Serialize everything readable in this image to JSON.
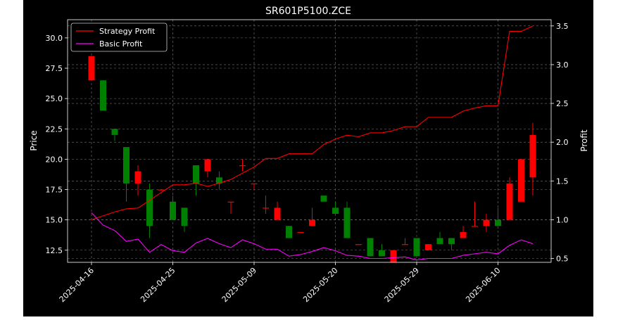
{
  "chart_data": {
    "type": "candlestick",
    "title": "SR601P5100.ZCE",
    "xlabel": "",
    "ylabel": "Price",
    "y2label": "Profit",
    "ylim": [
      11.5,
      31.5
    ],
    "y2lim": [
      0.45,
      3.58
    ],
    "yticks": [
      12.5,
      15.0,
      17.5,
      20.0,
      22.5,
      25.0,
      27.5,
      30.0
    ],
    "yticklabels": [
      "12.5",
      "15.0",
      "17.5",
      "20.0",
      "22.5",
      "25.0",
      "27.5",
      "30.0"
    ],
    "y2ticks": [
      0.5,
      1.0,
      1.5,
      2.0,
      2.5,
      3.0,
      3.5
    ],
    "y2ticklabels": [
      "0.5",
      "1.0",
      "1.5",
      "2.0",
      "2.5",
      "3.0",
      "3.5"
    ],
    "xticks": [
      {
        "index": 0,
        "label": "2025-04-16"
      },
      {
        "index": 7,
        "label": "2025-04-25"
      },
      {
        "index": 14,
        "label": "2025-05-09"
      },
      {
        "index": 21,
        "label": "2025-05-20"
      },
      {
        "index": 28,
        "label": "2025-05-29"
      },
      {
        "index": 35,
        "label": "2025-06-10"
      }
    ],
    "grid": true,
    "legend_position": "top-left",
    "colors": {
      "background": "#000000",
      "up": "#ff0000",
      "down": "#008000",
      "strategy": "#ff0000",
      "basic": "#ff00ff",
      "grid": "#777777",
      "text": "#ffffff"
    },
    "candles": [
      {
        "o": 26.5,
        "c": 28.5,
        "h": 28.5,
        "l": 26.5
      },
      {
        "o": 26.5,
        "c": 24.0,
        "h": 26.5,
        "l": 24.0
      },
      {
        "o": 22.5,
        "c": 22.0,
        "h": 22.5,
        "l": 21.5
      },
      {
        "o": 21.0,
        "c": 18.0,
        "h": 21.0,
        "l": 16.5
      },
      {
        "o": 18.0,
        "c": 19.0,
        "h": 19.5,
        "l": 17.0
      },
      {
        "o": 17.5,
        "c": 14.5,
        "h": 18.0,
        "l": 13.5
      },
      {
        "o": 17.5,
        "c": 17.5,
        "h": 17.5,
        "l": 17.5
      },
      {
        "o": 16.5,
        "c": 15.0,
        "h": 17.0,
        "l": 15.0
      },
      {
        "o": 16.0,
        "c": 14.5,
        "h": 16.0,
        "l": 14.0
      },
      {
        "o": 19.5,
        "c": 18.0,
        "h": 19.5,
        "l": 17.0
      },
      {
        "o": 19.0,
        "c": 20.0,
        "h": 20.0,
        "l": 18.5
      },
      {
        "o": 18.5,
        "c": 18.0,
        "h": 19.0,
        "l": 17.5
      },
      {
        "o": 16.5,
        "c": 16.5,
        "h": 16.5,
        "l": 15.5
      },
      {
        "o": 19.5,
        "c": 19.5,
        "h": 20.0,
        "l": 19.0
      },
      {
        "o": 18.0,
        "c": 18.0,
        "h": 18.0,
        "l": 17.5
      },
      {
        "o": 16.0,
        "c": 16.0,
        "h": 17.0,
        "l": 15.5
      },
      {
        "o": 15.0,
        "c": 16.0,
        "h": 16.5,
        "l": 15.0
      },
      {
        "o": 14.5,
        "c": 13.5,
        "h": 14.5,
        "l": 13.5
      },
      {
        "o": 14.0,
        "c": 14.0,
        "h": 14.0,
        "l": 14.0
      },
      {
        "o": 14.5,
        "c": 15.0,
        "h": 16.0,
        "l": 14.5
      },
      {
        "o": 17.0,
        "c": 16.5,
        "h": 17.0,
        "l": 16.5
      },
      {
        "o": 16.0,
        "c": 15.5,
        "h": 16.5,
        "l": 15.5
      },
      {
        "o": 16.0,
        "c": 13.5,
        "h": 16.5,
        "l": 13.5
      },
      {
        "o": 13.0,
        "c": 13.0,
        "h": 13.0,
        "l": 13.0
      },
      {
        "o": 13.5,
        "c": 12.0,
        "h": 13.5,
        "l": 12.0
      },
      {
        "o": 12.5,
        "c": 12.0,
        "h": 13.0,
        "l": 12.0
      },
      {
        "o": 11.5,
        "c": 12.5,
        "h": 12.5,
        "l": 11.5
      },
      {
        "o": 13.0,
        "c": 13.0,
        "h": 13.5,
        "l": 13.0
      },
      {
        "o": 13.5,
        "c": 12.0,
        "h": 13.5,
        "l": 12.0
      },
      {
        "o": 12.5,
        "c": 13.0,
        "h": 13.0,
        "l": 12.5
      },
      {
        "o": 13.5,
        "c": 13.0,
        "h": 14.0,
        "l": 13.0
      },
      {
        "o": 13.5,
        "c": 13.0,
        "h": 13.5,
        "l": 12.5
      },
      {
        "o": 13.5,
        "c": 14.0,
        "h": 14.5,
        "l": 13.5
      },
      {
        "o": 14.5,
        "c": 14.5,
        "h": 16.5,
        "l": 14.5
      },
      {
        "o": 14.5,
        "c": 15.0,
        "h": 15.5,
        "l": 14.0
      },
      {
        "o": 15.0,
        "c": 14.5,
        "h": 16.0,
        "l": 14.5
      },
      {
        "o": 15.0,
        "c": 18.0,
        "h": 18.5,
        "l": 15.0
      },
      {
        "o": 16.5,
        "c": 20.0,
        "h": 20.0,
        "l": 16.5
      },
      {
        "o": 18.5,
        "c": 22.0,
        "h": 23.0,
        "l": 17.0
      }
    ],
    "series": [
      {
        "name": "Strategy Profit",
        "color": "#ff0000",
        "values": [
          1.0,
          1.05,
          1.1,
          1.14,
          1.15,
          1.25,
          1.35,
          1.45,
          1.45,
          1.47,
          1.43,
          1.47,
          1.52,
          1.6,
          1.68,
          1.79,
          1.79,
          1.85,
          1.85,
          1.85,
          1.97,
          2.04,
          2.09,
          2.07,
          2.12,
          2.12,
          2.15,
          2.2,
          2.2,
          2.32,
          2.32,
          2.32,
          2.4,
          2.44,
          2.47,
          2.47,
          3.43,
          3.43,
          3.5
        ]
      },
      {
        "name": "Basic Profit",
        "color": "#ff00ff",
        "values": [
          1.09,
          0.93,
          0.86,
          0.72,
          0.75,
          0.58,
          0.68,
          0.6,
          0.58,
          0.7,
          0.76,
          0.69,
          0.64,
          0.74,
          0.69,
          0.62,
          0.62,
          0.53,
          0.55,
          0.59,
          0.64,
          0.6,
          0.54,
          0.53,
          0.5,
          0.5,
          0.51,
          0.52,
          0.48,
          0.5,
          0.5,
          0.5,
          0.54,
          0.56,
          0.58,
          0.56,
          0.67,
          0.74,
          0.69
        ]
      }
    ]
  }
}
